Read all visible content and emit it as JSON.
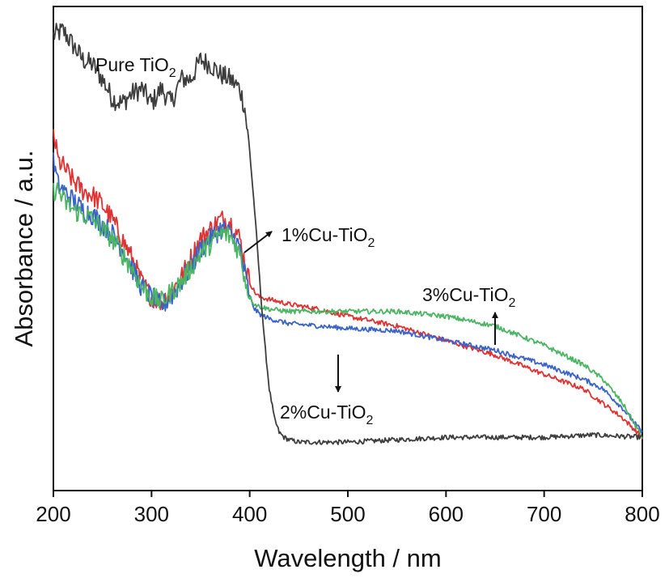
{
  "chart_data": {
    "type": "line",
    "xlabel": "Wavelength / nm",
    "ylabel": "Absorbance / a.u.",
    "xlim": [
      200,
      800
    ],
    "ylim": [
      0,
      1
    ],
    "y_ticks_shown": false,
    "x_ticks": [
      "200",
      "300",
      "400",
      "500",
      "600",
      "700",
      "800"
    ],
    "grid": false,
    "legend": "none",
    "series": [
      {
        "key": "pure",
        "color": "#3d3d3d",
        "x": [
          200,
          210,
          220,
          230,
          240,
          250,
          260,
          270,
          280,
          290,
          300,
          310,
          320,
          330,
          340,
          350,
          360,
          370,
          380,
          390,
          395,
          400,
          405,
          410,
          415,
          420,
          425,
          430,
          435,
          440,
          450,
          460,
          480,
          500,
          550,
          600,
          650,
          700,
          750,
          800
        ],
        "y": [
          0.94,
          0.95,
          0.92,
          0.89,
          0.88,
          0.85,
          0.81,
          0.8,
          0.82,
          0.83,
          0.8,
          0.83,
          0.8,
          0.85,
          0.85,
          0.89,
          0.88,
          0.86,
          0.85,
          0.83,
          0.79,
          0.7,
          0.58,
          0.44,
          0.31,
          0.21,
          0.15,
          0.12,
          0.11,
          0.105,
          0.1,
          0.1,
          0.1,
          0.1,
          0.105,
          0.11,
          0.11,
          0.11,
          0.115,
          0.11
        ]
      },
      {
        "key": "cu1",
        "color": "#e03232",
        "x": [
          200,
          205,
          210,
          220,
          230,
          240,
          250,
          260,
          270,
          280,
          290,
          300,
          310,
          320,
          330,
          340,
          350,
          360,
          370,
          375,
          380,
          385,
          390,
          395,
          400,
          405,
          410,
          420,
          440,
          470,
          500,
          550,
          600,
          650,
          700,
          740,
          760,
          780,
          800
        ],
        "y": [
          0.74,
          0.68,
          0.67,
          0.64,
          0.62,
          0.61,
          0.59,
          0.56,
          0.52,
          0.48,
          0.43,
          0.4,
          0.39,
          0.41,
          0.44,
          0.48,
          0.52,
          0.54,
          0.56,
          0.56,
          0.555,
          0.54,
          0.52,
          0.47,
          0.43,
          0.41,
          0.4,
          0.395,
          0.385,
          0.375,
          0.36,
          0.34,
          0.31,
          0.28,
          0.24,
          0.21,
          0.18,
          0.15,
          0.11
        ]
      },
      {
        "key": "cu2",
        "color": "#3a63c8",
        "x": [
          200,
          205,
          210,
          220,
          230,
          240,
          250,
          260,
          270,
          280,
          290,
          300,
          310,
          320,
          330,
          340,
          350,
          360,
          370,
          375,
          380,
          385,
          390,
          395,
          400,
          405,
          410,
          420,
          440,
          470,
          500,
          550,
          600,
          650,
          700,
          740,
          760,
          780,
          800
        ],
        "y": [
          0.68,
          0.63,
          0.62,
          0.6,
          0.58,
          0.57,
          0.55,
          0.53,
          0.5,
          0.46,
          0.42,
          0.4,
          0.38,
          0.4,
          0.43,
          0.46,
          0.5,
          0.52,
          0.54,
          0.54,
          0.53,
          0.52,
          0.5,
          0.45,
          0.4,
          0.375,
          0.365,
          0.355,
          0.345,
          0.34,
          0.335,
          0.33,
          0.31,
          0.29,
          0.26,
          0.23,
          0.21,
          0.17,
          0.12
        ]
      },
      {
        "key": "cu3",
        "color": "#4bb564",
        "x": [
          200,
          205,
          210,
          220,
          230,
          240,
          250,
          260,
          270,
          280,
          290,
          300,
          310,
          320,
          330,
          340,
          350,
          360,
          370,
          375,
          380,
          385,
          390,
          395,
          400,
          405,
          410,
          420,
          440,
          470,
          500,
          550,
          600,
          650,
          700,
          740,
          760,
          780,
          800
        ],
        "y": [
          0.62,
          0.62,
          0.6,
          0.58,
          0.57,
          0.56,
          0.54,
          0.52,
          0.49,
          0.46,
          0.42,
          0.4,
          0.39,
          0.41,
          0.43,
          0.46,
          0.49,
          0.51,
          0.53,
          0.53,
          0.525,
          0.51,
          0.49,
          0.44,
          0.4,
          0.385,
          0.38,
          0.375,
          0.37,
          0.37,
          0.37,
          0.37,
          0.36,
          0.34,
          0.3,
          0.26,
          0.23,
          0.18,
          0.11
        ]
      }
    ],
    "annotations": [
      {
        "key": "pure",
        "text": "Pure TiO",
        "sub": "2"
      },
      {
        "key": "cu1",
        "text": "1%Cu-TiO",
        "sub": "2"
      },
      {
        "key": "cu2",
        "text": "2%Cu-TiO",
        "sub": "2"
      },
      {
        "key": "cu3",
        "text": "3%Cu-TiO",
        "sub": "2"
      }
    ]
  }
}
